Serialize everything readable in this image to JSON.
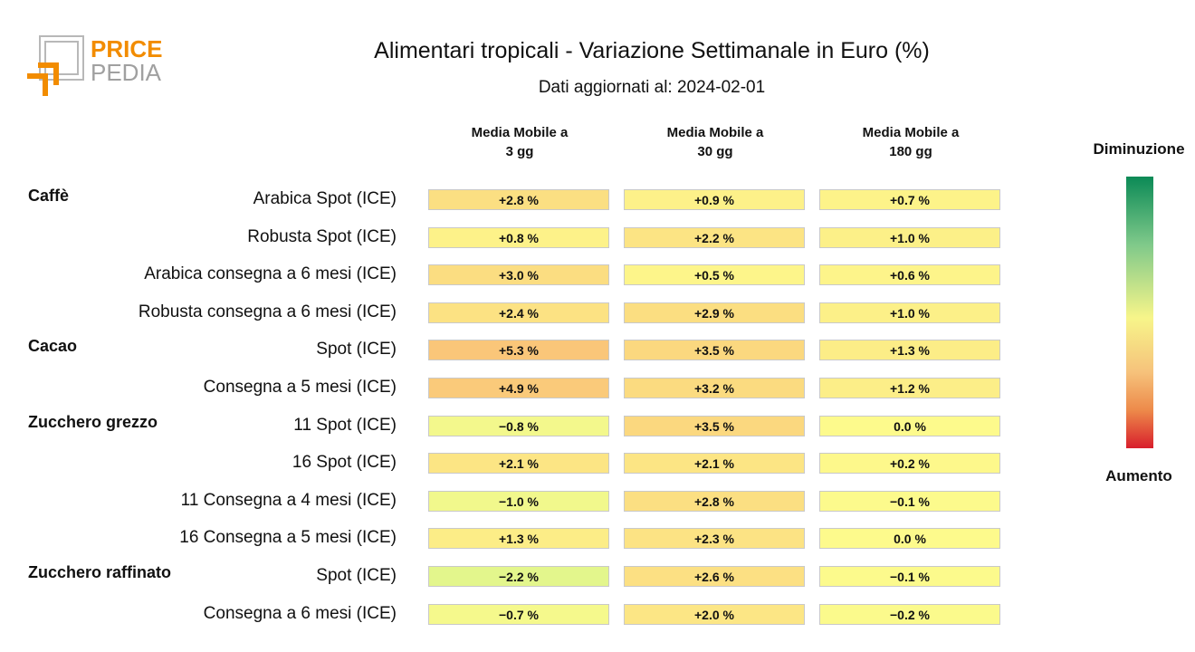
{
  "logo": {
    "text_top": "PRICE",
    "text_bottom": "PEDIA"
  },
  "title": "Alimentari tropicali - Variazione Settimanale in Euro (%)",
  "subtitle": "Dati aggiornati al: 2024-02-01",
  "legend": {
    "top_label": "Diminuzione",
    "bottom_label": "Aumento",
    "colors": [
      "#0b8a56",
      "#7fc98a",
      "#f7f58a",
      "#f6c27b",
      "#ed8a4a",
      "#d81e2c"
    ]
  },
  "chart_data": {
    "type": "table",
    "columns": [
      "Media Mobile a 3 gg",
      "Media Mobile a 30 gg",
      "Media Mobile a 180 gg"
    ],
    "column_lines": [
      [
        "Media Mobile a",
        "3 gg"
      ],
      [
        "Media Mobile a",
        "30 gg"
      ],
      [
        "Media Mobile a",
        "180 gg"
      ]
    ],
    "groups": [
      {
        "name": "Caffè",
        "rows": [
          {
            "label": "Arabica Spot (ICE)",
            "values": [
              2.8,
              0.9,
              0.7
            ],
            "texts": [
              "+2.8 %",
              "+0.9 %",
              "+0.7 %"
            ]
          },
          {
            "label": "Robusta Spot (ICE)",
            "values": [
              0.8,
              2.2,
              1.0
            ],
            "texts": [
              "+0.8 %",
              "+2.2 %",
              "+1.0 %"
            ]
          },
          {
            "label": "Arabica consegna a 6 mesi (ICE)",
            "values": [
              3.0,
              0.5,
              0.6
            ],
            "texts": [
              "+3.0 %",
              "+0.5 %",
              "+0.6 %"
            ]
          },
          {
            "label": "Robusta consegna a 6 mesi (ICE)",
            "values": [
              2.4,
              2.9,
              1.0
            ],
            "texts": [
              "+2.4 %",
              "+2.9 %",
              "+1.0 %"
            ]
          }
        ]
      },
      {
        "name": "Cacao",
        "rows": [
          {
            "label": "Spot (ICE)",
            "values": [
              5.3,
              3.5,
              1.3
            ],
            "texts": [
              "+5.3 %",
              "+3.5 %",
              "+1.3 %"
            ]
          },
          {
            "label": "Consegna a 5 mesi (ICE)",
            "values": [
              4.9,
              3.2,
              1.2
            ],
            "texts": [
              "+4.9 %",
              "+3.2 %",
              "+1.2 %"
            ]
          }
        ]
      },
      {
        "name": "Zucchero grezzo",
        "rows": [
          {
            "label": "11 Spot (ICE)",
            "values": [
              -0.8,
              3.5,
              0.0
            ],
            "texts": [
              "−0.8 %",
              "+3.5 %",
              "0.0 %"
            ]
          },
          {
            "label": "16 Spot (ICE)",
            "values": [
              2.1,
              2.1,
              0.2
            ],
            "texts": [
              "+2.1 %",
              "+2.1 %",
              "+0.2 %"
            ]
          },
          {
            "label": "11 Consegna a 4 mesi (ICE)",
            "values": [
              -1.0,
              2.8,
              -0.1
            ],
            "texts": [
              "−1.0 %",
              "+2.8 %",
              "−0.1 %"
            ]
          },
          {
            "label": "16 Consegna a 5 mesi (ICE)",
            "values": [
              1.3,
              2.3,
              0.0
            ],
            "texts": [
              "+1.3 %",
              "+2.3 %",
              "0.0 %"
            ]
          }
        ]
      },
      {
        "name": "Zucchero raffinato",
        "rows": [
          {
            "label": "Spot (ICE)",
            "values": [
              -2.2,
              2.6,
              -0.1
            ],
            "texts": [
              "−2.2 %",
              "+2.6 %",
              "−0.1 %"
            ]
          },
          {
            "label": "Consegna a 6 mesi (ICE)",
            "values": [
              -0.7,
              2.0,
              -0.2
            ],
            "texts": [
              "−0.7 %",
              "+2.0 %",
              "−0.2 %"
            ]
          }
        ]
      }
    ]
  }
}
